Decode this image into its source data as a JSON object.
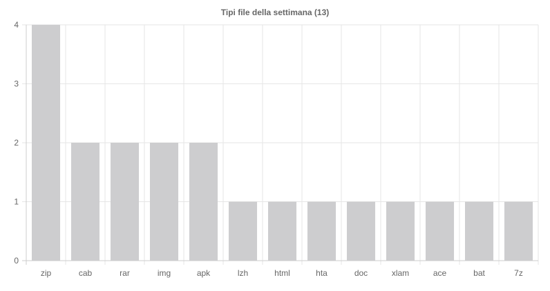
{
  "chart_data": {
    "type": "bar",
    "title": "Tipi file della settimana (13)",
    "xlabel": "",
    "ylabel": "",
    "categories": [
      "zip",
      "cab",
      "rar",
      "img",
      "apk",
      "lzh",
      "html",
      "hta",
      "doc",
      "xlam",
      "ace",
      "bat",
      "7z"
    ],
    "values": [
      4,
      2,
      2,
      2,
      2,
      1,
      1,
      1,
      1,
      1,
      1,
      1,
      1
    ],
    "ylim": [
      0,
      4
    ],
    "yticks": [
      0,
      1,
      2,
      3,
      4
    ],
    "grid": true,
    "legend": "none",
    "colors": {
      "bar": "#cdcdcf",
      "grid": "#e6e6e6",
      "axis": "#cccccc",
      "text": "#666666"
    }
  }
}
